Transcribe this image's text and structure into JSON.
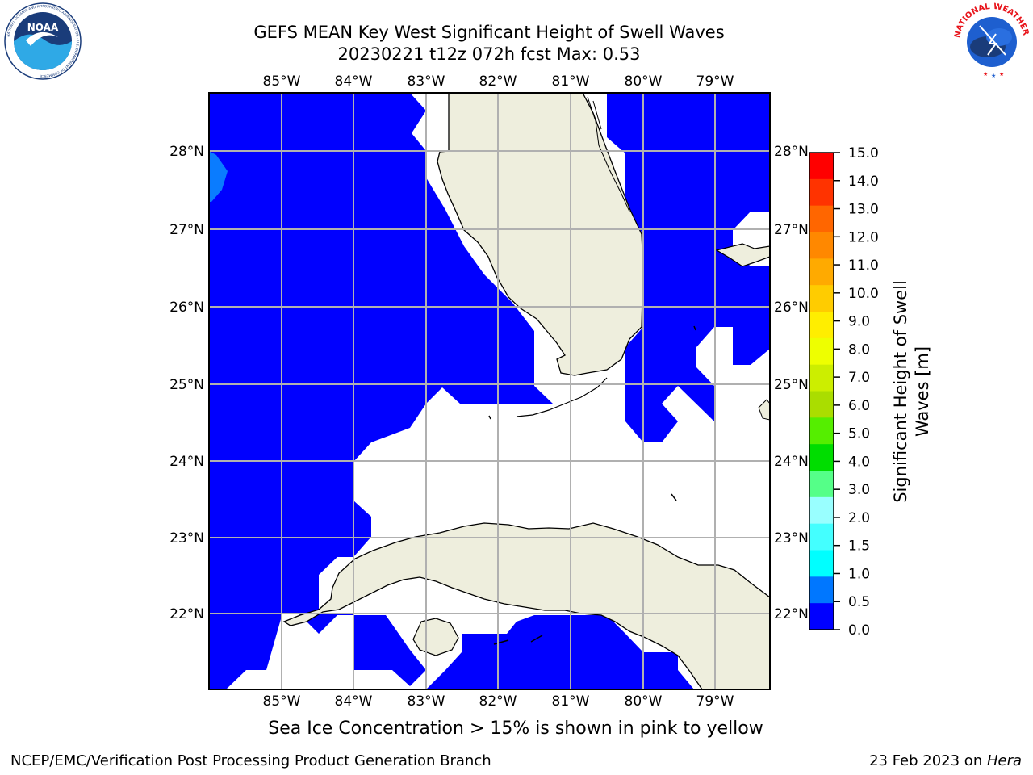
{
  "title": {
    "line1": "GEFS MEAN Key West Significant Height of Swell Waves",
    "line2": "20230221 t12z 072h fcst   Max: 0.53"
  },
  "map": {
    "lon_ticks": [
      "85°W",
      "84°W",
      "83°W",
      "82°W",
      "81°W",
      "80°W",
      "79°W"
    ],
    "lat_ticks": [
      "28°N",
      "27°N",
      "26°N",
      "25°N",
      "24°N",
      "23°N",
      "22°N"
    ],
    "colors": {
      "ocean_low": "#0000ff",
      "ocean_mid": "#0a7cff",
      "land": "#eeeedd",
      "no_data": "#ffffff",
      "grid": "#b0b0b0"
    }
  },
  "colorbar": {
    "label_line1": "Significant Height of Swell",
    "label_line2": "Waves [m]",
    "ticks": [
      "15.0",
      "14.0",
      "13.0",
      "12.0",
      "11.0",
      "10.0",
      "9.0",
      "8.0",
      "7.0",
      "6.0",
      "5.0",
      "4.0",
      "3.0",
      "2.0",
      "1.5",
      "1.0",
      "0.5",
      "0.0"
    ],
    "colors": [
      "#ff0000",
      "#ff3300",
      "#ff6600",
      "#ff8800",
      "#ffaa00",
      "#ffcc00",
      "#ffee00",
      "#eeff00",
      "#ccee00",
      "#aadd00",
      "#55ee00",
      "#00dd00",
      "#55ff88",
      "#99ffff",
      "#44ffff",
      "#00ffff",
      "#0077ff",
      "#0000ff"
    ]
  },
  "logos": {
    "noaa_text": "NOAA",
    "noaa_ring": "NATIONAL OCEANIC AND ATMOSPHERIC ADMINISTRATION · U.S. DEPARTMENT OF COMMERCE",
    "nws_ring": "NATIONAL WEATHER SERVICE"
  },
  "note": "Sea Ice Concentration > 15% is shown in pink to yellow",
  "footer": {
    "left": "NCEP/EMC/Verification Post Processing Product Generation Branch",
    "right_date": "23 Feb 2023 on ",
    "right_host": "Hera"
  }
}
